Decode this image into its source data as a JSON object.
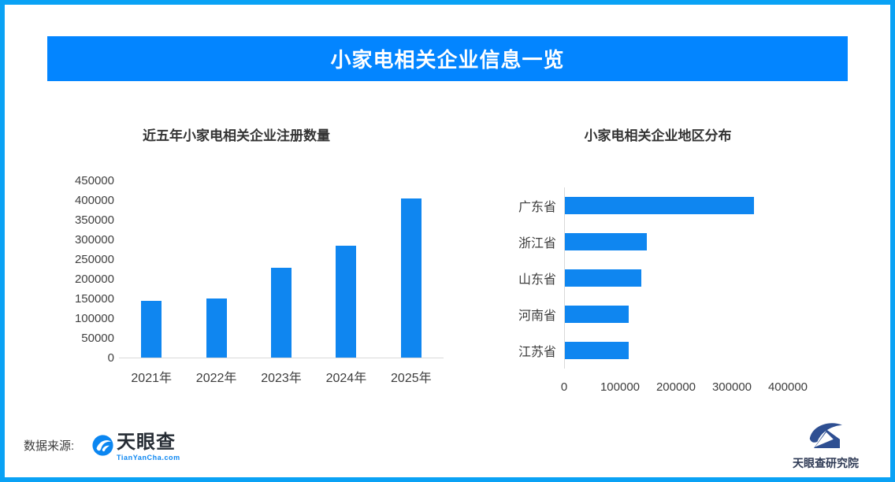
{
  "page": {
    "border_color": "#0aa2f5",
    "background": "#ffffff"
  },
  "banner": {
    "title": "小家电相关企业信息一览",
    "bg": "#0385ff",
    "text_color": "#ffffff"
  },
  "colors": {
    "bar": "#0f86f0",
    "axis_line": "#d9d9d9",
    "title_text": "#333333",
    "axis_text": "#404040"
  },
  "chart_data": [
    {
      "type": "bar",
      "orientation": "vertical",
      "title": "近五年小家电相关企业注册数量",
      "categories": [
        "2021年",
        "2022年",
        "2023年",
        "2024年",
        "2025年"
      ],
      "values": [
        145000,
        151000,
        228000,
        285000,
        405000
      ],
      "ylim": [
        0,
        450000
      ],
      "ytick_step": 50000,
      "yticks": [
        "450000",
        "400000",
        "350000",
        "300000",
        "250000",
        "200000",
        "150000",
        "100000",
        "50000",
        "0"
      ],
      "grid": false,
      "bar_color": "#0f86f0"
    },
    {
      "type": "bar",
      "orientation": "horizontal",
      "title": "小家电相关企业地区分布",
      "categories": [
        "广东省",
        "浙江省",
        "山东省",
        "河南省",
        "江苏省"
      ],
      "values": [
        338000,
        147000,
        137000,
        114000,
        114000
      ],
      "xlim": [
        0,
        400000
      ],
      "xticks": [
        "0",
        "100000",
        "200000",
        "300000",
        "400000"
      ],
      "grid": false,
      "bar_color": "#0f86f0"
    }
  ],
  "footer": {
    "source_label": "数据来源:",
    "tianyancha_name": "天眼查",
    "tianyancha_sub": "TianYanCha.com",
    "research_name": "天眼查研究院"
  }
}
